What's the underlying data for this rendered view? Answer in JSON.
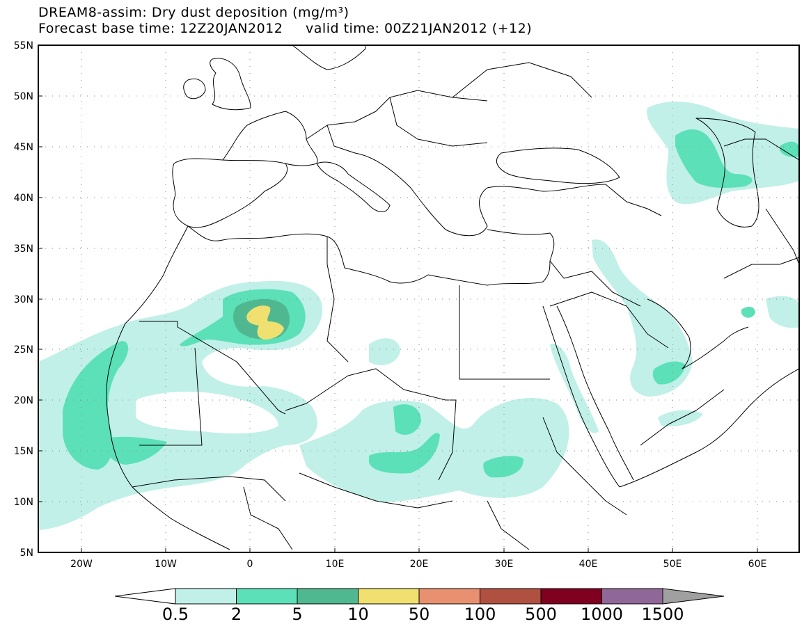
{
  "title_line1": "DREAM8-assim: Dry dust deposition (mg/m³)",
  "title_line2": "Forecast base time: 12Z20JAN2012     valid time: 00Z21JAN2012 (+12)",
  "axes": {
    "lat_labels": [
      "55N",
      "50N",
      "45N",
      "40N",
      "35N",
      "30N",
      "25N",
      "20N",
      "15N",
      "10N",
      "5N"
    ],
    "lon_labels": [
      "20W",
      "10W",
      "0",
      "10E",
      "20E",
      "30E",
      "40E",
      "50E",
      "60E"
    ]
  },
  "colorbar": {
    "labels": [
      "0.5",
      "2",
      "5",
      "10",
      "50",
      "100",
      "500",
      "1000",
      "1500"
    ],
    "colors": [
      "#c0f0e8",
      "#5ce0b8",
      "#50b890",
      "#f0e070",
      "#e89070",
      "#b05040",
      "#800020",
      "#906898",
      "#a0a0a0"
    ]
  },
  "map_colors": {
    "ocean": "#ffffff",
    "border": "#000000"
  }
}
